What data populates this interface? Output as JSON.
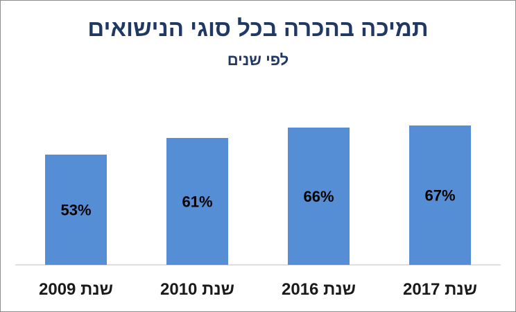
{
  "chart_data": {
    "type": "bar",
    "title": "תמיכה בהכרה בכל סוגי הנישואים",
    "subtitle": "לפי שנים",
    "categories": [
      "שנת 2009",
      "שנת 2010",
      "שנת 2016",
      "שנת 2017"
    ],
    "values": [
      53,
      61,
      66,
      67
    ],
    "data_labels": [
      "53%",
      "61%",
      "66%",
      "67%"
    ],
    "ylim": [
      0,
      80
    ],
    "grid": false,
    "legend": "none",
    "colors": {
      "bar": "#558ed5",
      "title": "#1f3864",
      "axis": "#bfbfbf"
    }
  }
}
